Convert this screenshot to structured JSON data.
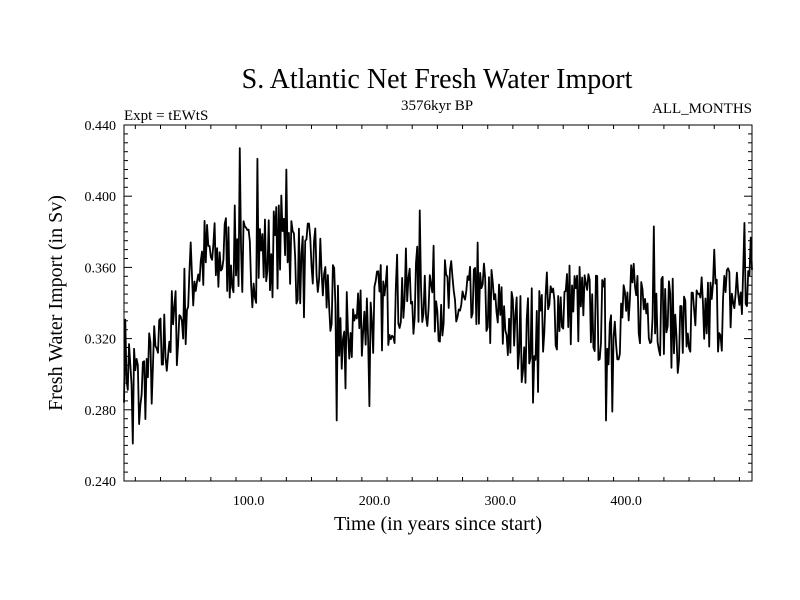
{
  "chart_data": {
    "type": "line",
    "title": "S. Atlantic Net Fresh Water Import",
    "subtitle_left": "Expt = tEWtS",
    "subtitle_center": "3576kyr BP",
    "subtitle_right": "ALL_MONTHS",
    "xlabel": "Time (in years since start)",
    "ylabel": "Fresh Water Import (in Sv)",
    "xlim": [
      1,
      500
    ],
    "ylim": [
      0.24,
      0.44
    ],
    "xticks": [
      100,
      200,
      300,
      400
    ],
    "xtick_labels": [
      "100.0",
      "200.0",
      "300.0",
      "400.0"
    ],
    "yticks": [
      0.24,
      0.28,
      0.32,
      0.36,
      0.4,
      0.44
    ],
    "ytick_labels": [
      "0.240",
      "0.280",
      "0.320",
      "0.360",
      "0.400",
      "0.440"
    ],
    "grid": false,
    "series": [
      {
        "name": "Fresh Water Import",
        "anchors_x": [
          1,
          5,
          10,
          15,
          20,
          25,
          30,
          35,
          40,
          45,
          50,
          55,
          60,
          65,
          70,
          75,
          80,
          85,
          90,
          95,
          100,
          105,
          110,
          115,
          120,
          125,
          130,
          135,
          140,
          145,
          150,
          155,
          160,
          165,
          170,
          175,
          180,
          185,
          190,
          195,
          200,
          210,
          220,
          230,
          240,
          250,
          260,
          270,
          280,
          290,
          300,
          310,
          320,
          330,
          340,
          350,
          360,
          370,
          380,
          390,
          400,
          410,
          420,
          430,
          440,
          450,
          460,
          470,
          480,
          490,
          500
        ],
        "anchors_y": [
          0.31,
          0.305,
          0.3,
          0.295,
          0.3,
          0.305,
          0.31,
          0.32,
          0.325,
          0.33,
          0.34,
          0.355,
          0.36,
          0.365,
          0.365,
          0.36,
          0.37,
          0.365,
          0.37,
          0.365,
          0.36,
          0.365,
          0.37,
          0.365,
          0.37,
          0.375,
          0.38,
          0.37,
          0.36,
          0.355,
          0.365,
          0.36,
          0.35,
          0.34,
          0.33,
          0.32,
          0.325,
          0.33,
          0.335,
          0.33,
          0.335,
          0.34,
          0.345,
          0.345,
          0.35,
          0.345,
          0.34,
          0.335,
          0.335,
          0.34,
          0.33,
          0.325,
          0.32,
          0.33,
          0.335,
          0.34,
          0.34,
          0.335,
          0.33,
          0.33,
          0.335,
          0.34,
          0.34,
          0.335,
          0.325,
          0.325,
          0.33,
          0.335,
          0.34,
          0.345,
          0.355
        ],
        "noise_amplitude": 0.026,
        "spikes_x": [
          8,
          13,
          93,
          107,
          130,
          170,
          177,
          196,
          236,
          282,
          326,
          330,
          384,
          389,
          422,
          470,
          494
        ],
        "spikes_y": [
          0.261,
          0.272,
          0.427,
          0.421,
          0.415,
          0.274,
          0.292,
          0.282,
          0.392,
          0.374,
          0.284,
          0.29,
          0.274,
          0.279,
          0.383,
          0.37,
          0.385
        ]
      }
    ]
  }
}
